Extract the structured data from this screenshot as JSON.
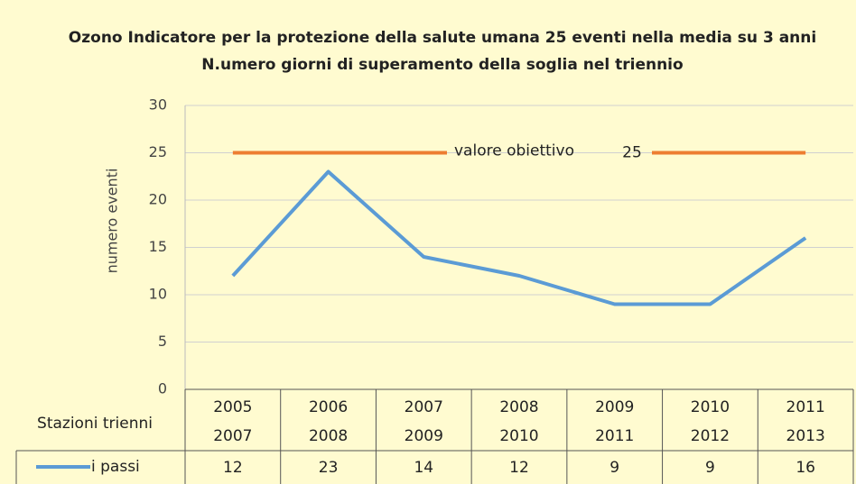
{
  "chart_data": {
    "type": "line",
    "title": [
      "Ozono Indicatore per la protezione della salute umana 25 eventi nella media su 3 anni",
      "N.umero giorni di superamento della soglia nel triennio"
    ],
    "ylabel": "numero eventi",
    "table_label": "Stazioni   trienni",
    "categories": [
      [
        "2005",
        "2007"
      ],
      [
        "2006",
        "2008"
      ],
      [
        "2007",
        "2009"
      ],
      [
        "2008",
        "2010"
      ],
      [
        "2009",
        "2011"
      ],
      [
        "2010",
        "2012"
      ],
      [
        "2011",
        "2013"
      ]
    ],
    "series": [
      {
        "name": "i passi",
        "color": "#5b9bd5",
        "values": [
          12,
          23,
          14,
          12,
          9,
          9,
          16
        ]
      }
    ],
    "reference": {
      "label": "valore obiettivo",
      "value": 25,
      "color": "#ed7d31"
    },
    "ylim": [
      0,
      30
    ],
    "yticks": [
      0,
      5,
      10,
      15,
      20,
      25,
      30
    ],
    "grid": true
  }
}
